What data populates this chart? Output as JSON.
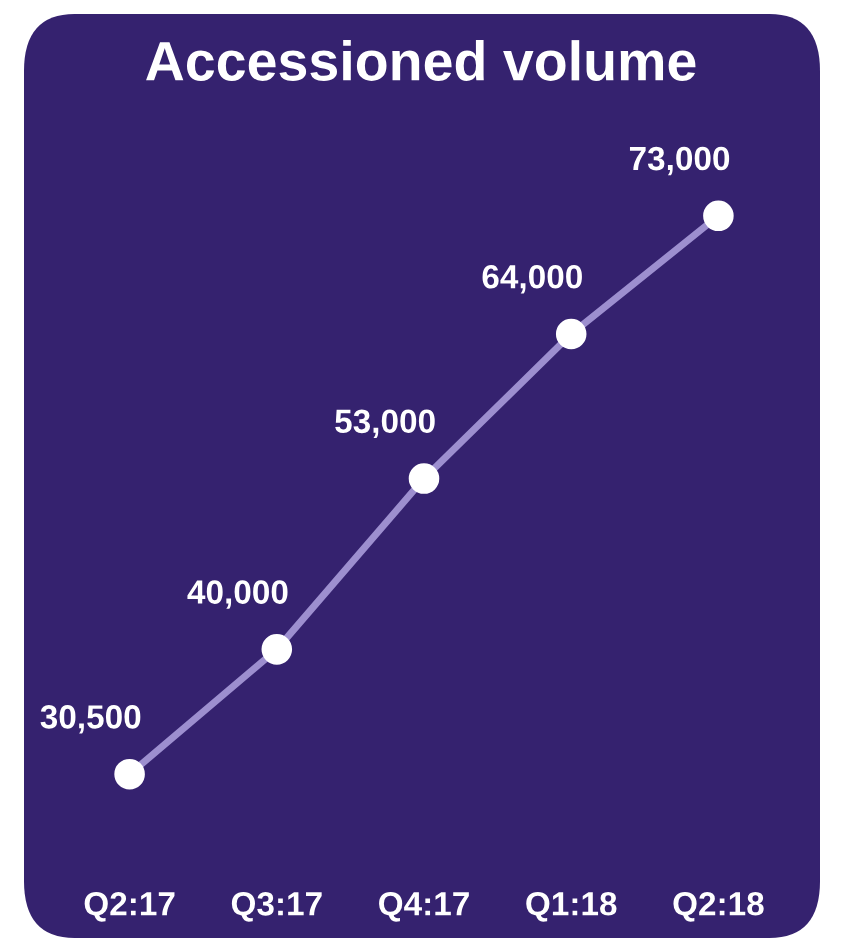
{
  "chart_data": {
    "type": "line",
    "title": "Accessioned volume",
    "categories": [
      "Q2:17",
      "Q3:17",
      "Q4:17",
      "Q1:18",
      "Q2:18"
    ],
    "series": [
      {
        "color": "#9d8fcf",
        "values": [
          30500,
          40000,
          53000,
          64000,
          73000
        ],
        "value_labels": [
          "30,500",
          "40,000",
          "53,000",
          "64,000",
          "73,000"
        ]
      }
    ],
    "marker": "circle",
    "line_style": "solid",
    "grid": false,
    "legend": false
  }
}
